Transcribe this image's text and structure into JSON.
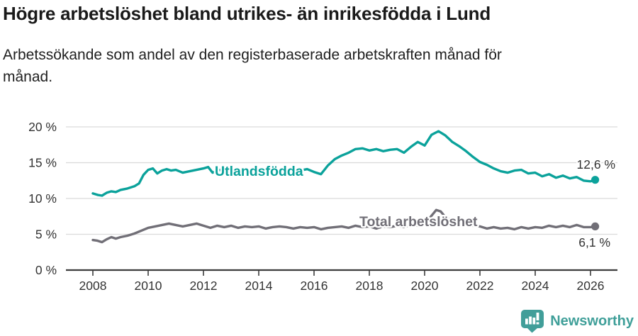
{
  "header": {
    "title": "Högre arbetslöshet bland utrikes- än inrikesfödda i Lund",
    "subtitle_line1": "Arbetssökande som andel av den registerbaserade arbetskraften månad för",
    "subtitle_line2": "månad."
  },
  "footer": {
    "brand": "Newsworthy"
  },
  "colors": {
    "teal": "#0ba29b",
    "gray": "#716f77",
    "axis": "#3c3c3c",
    "grid": "#dadada",
    "tick_text": "#333333",
    "brand_teal": "#419e99"
  },
  "chart_data": {
    "type": "line",
    "title": "Högre arbetslöshet bland utrikes- än inrikesfödda i Lund",
    "subtitle": "Arbetssökande som andel av den registerbaserade arbetskraften månad för månad.",
    "x_axis": {
      "ticks": [
        2008,
        2010,
        2012,
        2014,
        2016,
        2018,
        2020,
        2022,
        2024,
        2026
      ],
      "range": [
        2008,
        2026.2
      ]
    },
    "y_axis": {
      "ticks": [
        0,
        5,
        10,
        15,
        20
      ],
      "unit": "%",
      "range": [
        0,
        20.5
      ],
      "tick_suffix": " %"
    },
    "grid": "horizontal",
    "legend_position": "inline-labels",
    "series": [
      {
        "name": "Utlandsfödda",
        "color": "#0ba29b",
        "end_label": "12,6 %",
        "end_value": 12.6,
        "points": [
          [
            2008,
            10.7
          ],
          [
            2008.17,
            10.5
          ],
          [
            2008.33,
            10.4
          ],
          [
            2008.5,
            10.8
          ],
          [
            2008.67,
            11.0
          ],
          [
            2008.83,
            10.9
          ],
          [
            2009,
            11.2
          ],
          [
            2009.25,
            11.4
          ],
          [
            2009.5,
            11.7
          ],
          [
            2009.67,
            12.1
          ],
          [
            2009.83,
            13.3
          ],
          [
            2010,
            14.0
          ],
          [
            2010.17,
            14.2
          ],
          [
            2010.33,
            13.5
          ],
          [
            2010.5,
            13.9
          ],
          [
            2010.67,
            14.1
          ],
          [
            2010.83,
            13.9
          ],
          [
            2011,
            14.0
          ],
          [
            2011.25,
            13.6
          ],
          [
            2011.5,
            13.8
          ],
          [
            2011.75,
            14.0
          ],
          [
            2012,
            14.2
          ],
          [
            2012.17,
            14.4
          ],
          [
            2012.33,
            13.6
          ],
          [
            2012.5,
            13.9
          ],
          [
            2012.75,
            14.1
          ],
          [
            2013,
            14.0
          ],
          [
            2013.25,
            13.7
          ],
          [
            2013.5,
            14.0
          ],
          [
            2013.75,
            13.8
          ],
          [
            2014,
            13.9
          ],
          [
            2014.25,
            13.6
          ],
          [
            2014.5,
            13.8
          ],
          [
            2014.75,
            14.0
          ],
          [
            2015,
            13.9
          ],
          [
            2015.25,
            13.6
          ],
          [
            2015.5,
            13.9
          ],
          [
            2015.75,
            14.1
          ],
          [
            2016,
            13.7
          ],
          [
            2016.25,
            13.4
          ],
          [
            2016.5,
            14.6
          ],
          [
            2016.75,
            15.5
          ],
          [
            2017,
            16.0
          ],
          [
            2017.25,
            16.4
          ],
          [
            2017.5,
            16.9
          ],
          [
            2017.75,
            17.0
          ],
          [
            2018,
            16.7
          ],
          [
            2018.25,
            16.9
          ],
          [
            2018.5,
            16.6
          ],
          [
            2018.75,
            16.8
          ],
          [
            2019,
            16.9
          ],
          [
            2019.25,
            16.4
          ],
          [
            2019.5,
            17.2
          ],
          [
            2019.75,
            17.9
          ],
          [
            2020,
            17.4
          ],
          [
            2020.25,
            18.9
          ],
          [
            2020.5,
            19.4
          ],
          [
            2020.75,
            18.8
          ],
          [
            2021,
            17.9
          ],
          [
            2021.25,
            17.3
          ],
          [
            2021.5,
            16.6
          ],
          [
            2021.75,
            15.8
          ],
          [
            2022,
            15.1
          ],
          [
            2022.25,
            14.7
          ],
          [
            2022.5,
            14.2
          ],
          [
            2022.75,
            13.8
          ],
          [
            2023,
            13.6
          ],
          [
            2023.25,
            13.9
          ],
          [
            2023.5,
            14.0
          ],
          [
            2023.75,
            13.5
          ],
          [
            2024,
            13.6
          ],
          [
            2024.25,
            13.1
          ],
          [
            2024.5,
            13.4
          ],
          [
            2024.75,
            12.9
          ],
          [
            2025,
            13.2
          ],
          [
            2025.25,
            12.8
          ],
          [
            2025.5,
            13.0
          ],
          [
            2025.75,
            12.5
          ],
          [
            2026,
            12.4
          ],
          [
            2026.17,
            12.6
          ]
        ]
      },
      {
        "name": "Total arbetslöshet",
        "color": "#716f77",
        "end_label": "6,1 %",
        "end_value": 6.1,
        "points": [
          [
            2008,
            4.2
          ],
          [
            2008.17,
            4.1
          ],
          [
            2008.33,
            3.9
          ],
          [
            2008.5,
            4.3
          ],
          [
            2008.67,
            4.6
          ],
          [
            2008.83,
            4.4
          ],
          [
            2009,
            4.6
          ],
          [
            2009.25,
            4.8
          ],
          [
            2009.5,
            5.1
          ],
          [
            2009.75,
            5.5
          ],
          [
            2010,
            5.9
          ],
          [
            2010.25,
            6.1
          ],
          [
            2010.5,
            6.3
          ],
          [
            2010.75,
            6.5
          ],
          [
            2011,
            6.3
          ],
          [
            2011.25,
            6.1
          ],
          [
            2011.5,
            6.3
          ],
          [
            2011.75,
            6.5
          ],
          [
            2012,
            6.2
          ],
          [
            2012.25,
            5.9
          ],
          [
            2012.5,
            6.2
          ],
          [
            2012.75,
            6.0
          ],
          [
            2013,
            6.2
          ],
          [
            2013.25,
            5.9
          ],
          [
            2013.5,
            6.1
          ],
          [
            2013.75,
            6.0
          ],
          [
            2014,
            6.1
          ],
          [
            2014.25,
            5.8
          ],
          [
            2014.5,
            6.0
          ],
          [
            2014.75,
            6.1
          ],
          [
            2015,
            6.0
          ],
          [
            2015.25,
            5.8
          ],
          [
            2015.5,
            6.0
          ],
          [
            2015.75,
            5.9
          ],
          [
            2016,
            6.0
          ],
          [
            2016.25,
            5.7
          ],
          [
            2016.5,
            5.9
          ],
          [
            2016.75,
            6.0
          ],
          [
            2017,
            6.1
          ],
          [
            2017.25,
            5.9
          ],
          [
            2017.5,
            6.2
          ],
          [
            2017.75,
            6.0
          ],
          [
            2018,
            6.1
          ],
          [
            2018.25,
            5.8
          ],
          [
            2018.5,
            6.1
          ],
          [
            2018.75,
            6.0
          ],
          [
            2019,
            6.2
          ],
          [
            2019.25,
            6.0
          ],
          [
            2019.5,
            6.3
          ],
          [
            2019.75,
            6.2
          ],
          [
            2020,
            6.3
          ],
          [
            2020.25,
            7.6
          ],
          [
            2020.42,
            8.4
          ],
          [
            2020.58,
            8.2
          ],
          [
            2020.75,
            7.4
          ],
          [
            2021,
            6.8
          ],
          [
            2021.25,
            6.5
          ],
          [
            2021.5,
            6.3
          ],
          [
            2021.75,
            6.2
          ],
          [
            2022,
            6.1
          ],
          [
            2022.25,
            5.8
          ],
          [
            2022.5,
            6.0
          ],
          [
            2022.75,
            5.8
          ],
          [
            2023,
            5.9
          ],
          [
            2023.25,
            5.7
          ],
          [
            2023.5,
            6.0
          ],
          [
            2023.75,
            5.8
          ],
          [
            2024,
            6.0
          ],
          [
            2024.25,
            5.9
          ],
          [
            2024.5,
            6.2
          ],
          [
            2024.75,
            6.0
          ],
          [
            2025,
            6.2
          ],
          [
            2025.25,
            6.0
          ],
          [
            2025.5,
            6.3
          ],
          [
            2025.75,
            6.0
          ],
          [
            2026,
            6.0
          ],
          [
            2026.17,
            6.1
          ]
        ]
      }
    ]
  }
}
